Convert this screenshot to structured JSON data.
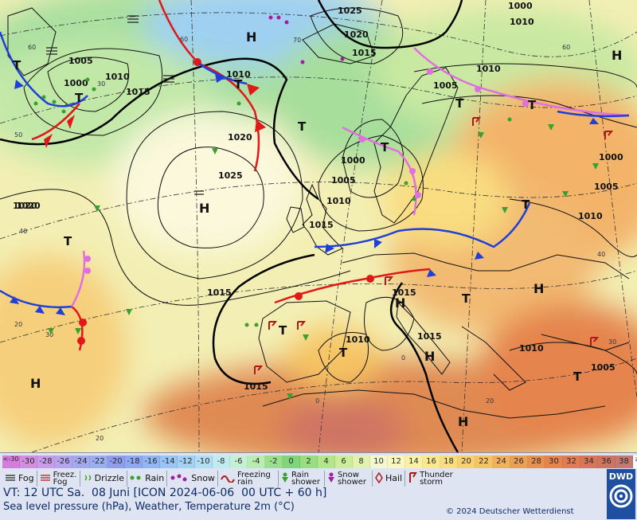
{
  "map": {
    "isobar_labels": [
      "1025",
      "1000",
      "1005",
      "1020",
      "1015",
      "1010",
      "1000",
      "1010",
      "1015",
      "1020",
      "1025",
      "1020",
      "1015",
      "1000",
      "1005",
      "1010",
      "1015",
      "1005",
      "1010",
      "1000",
      "1005",
      "1010",
      "1020",
      "1015",
      "1010",
      "1015",
      "1010",
      "1005",
      "1015",
      "1010"
    ],
    "pressure_centers": [
      "H",
      "H",
      "H",
      "H",
      "H",
      "H",
      "H",
      "H"
    ],
    "trough_markers": [
      "T",
      "T",
      "T",
      "T",
      "T",
      "T",
      "T",
      "T",
      "T",
      "T",
      "T",
      "T",
      "T"
    ],
    "grid_labels": [
      "60",
      "60",
      "70",
      "60",
      "50",
      "40",
      "40",
      "30",
      "30",
      "20",
      "20",
      "0",
      "30",
      "20",
      "0"
    ]
  },
  "temperature_scale": {
    "steps": [
      "<-30",
      "-30",
      "-28",
      "-26",
      "-24",
      "-22",
      "-20",
      "-18",
      "-16",
      "-14",
      "-12",
      "-10",
      "-8",
      "-6",
      "-4",
      "-2",
      "0",
      "2",
      "4",
      "6",
      "8",
      "10",
      "12",
      "14",
      "16",
      "18",
      "20",
      "22",
      "24",
      "26",
      "28",
      "30",
      "32",
      "34",
      "36",
      "38",
      "≥40 °C"
    ],
    "colors": [
      "#d57cdc",
      "#d48ee0",
      "#c79cec",
      "#b5a5ef",
      "#a3a9f0",
      "#9aaef2",
      "#8f9cf0",
      "#8fa8f4",
      "#92b5f6",
      "#98c4f6",
      "#a3d1f4",
      "#b1def2",
      "#c0ebf0",
      "#c6f0d3",
      "#b8ecb0",
      "#9ae08c",
      "#7fd67a",
      "#99de7e",
      "#b2e688",
      "#cdee98",
      "#e2f3ae",
      "#f4f8cf",
      "#fbf7c0",
      "#fbf1a6",
      "#fbe98e",
      "#f9dd80",
      "#f9d070",
      "#f6c464",
      "#f1b05c",
      "#eca056",
      "#e8904f",
      "#e5844e",
      "#e17c52",
      "#d9765a",
      "#cf7464",
      "#c47a72",
      "#ffffff"
    ]
  },
  "weather_legend": {
    "fog": "Fog",
    "freezing_fog": "Freez. Fog",
    "drizzle": "Drizzle",
    "rain": "Rain",
    "snow": "Snow",
    "freezing_rain": "Freezing rain",
    "rain_shower": "Rain shower",
    "snow_shower": "Snow shower",
    "hail": "Hail",
    "thunderstorm": "Thunder storm"
  },
  "footer": {
    "valid_time": "VT: 12 UTC Sa.  08 Juni [ICON 2024-06-06  00 UTC + 60 h]",
    "subtitle": "Sea level pressure (hPa), Weather, Temperature 2m (°C)",
    "copyright": "© 2024 Deutscher Wetterdienst",
    "logo_text": "DWD"
  }
}
